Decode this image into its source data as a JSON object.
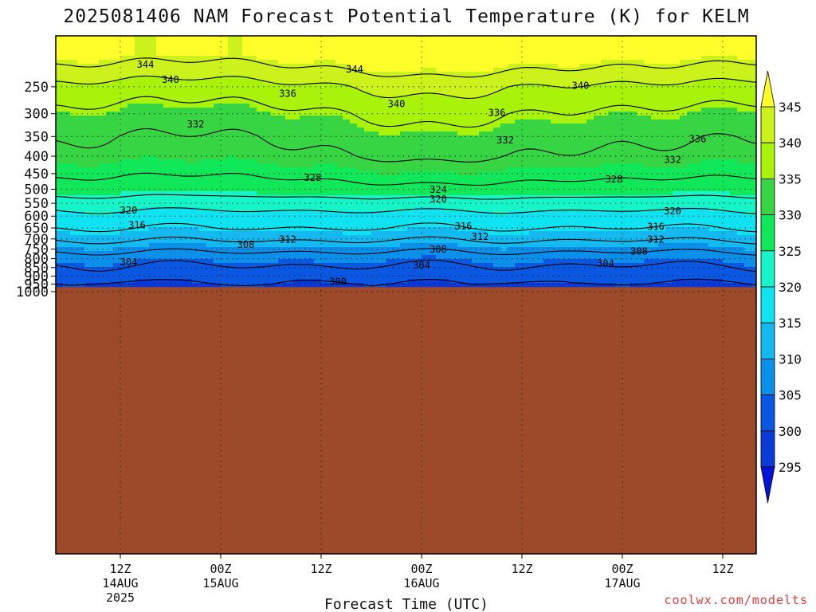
{
  "chart_data": {
    "type": "heatmap",
    "title": "2025081406 NAM Forecast Potential Temperature (K) for KELM",
    "xlabel": "Forecast Time (UTC)",
    "ylabel": "",
    "credit": "coolwx.com/modelts",
    "y_scale": "log-pressure",
    "y_reversed": true,
    "ylim": [
      1000,
      200
    ],
    "y_ticks": [
      "250",
      "300",
      "350",
      "400",
      "450",
      "500",
      "550",
      "600",
      "650",
      "700",
      "750",
      "800",
      "850",
      "900",
      "950",
      "1000"
    ],
    "x_ticks": [
      {
        "hour": 6,
        "label": "12Z",
        "sub": "14AUG",
        "sub2": "2025"
      },
      {
        "hour": 18,
        "label": "00Z",
        "sub": "15AUG",
        "sub2": ""
      },
      {
        "hour": 30,
        "label": "12Z",
        "sub": "",
        "sub2": ""
      },
      {
        "hour": 42,
        "label": "00Z",
        "sub": "16AUG",
        "sub2": ""
      },
      {
        "hour": 54,
        "label": "12Z",
        "sub": "",
        "sub2": ""
      },
      {
        "hour": 66,
        "label": "00Z",
        "sub": "17AUG",
        "sub2": ""
      },
      {
        "hour": 78,
        "label": "12Z",
        "sub": "",
        "sub2": ""
      }
    ],
    "x_range_hours": [
      0,
      84
    ],
    "grid": true,
    "colorbar": {
      "labels": [
        "345",
        "340",
        "335",
        "330",
        "325",
        "320",
        "315",
        "310",
        "305",
        "300",
        "295"
      ],
      "colors": [
        "#fffe2a",
        "#ccf21c",
        "#a9f20a",
        "#37d444",
        "#10e85a",
        "#15f5c8",
        "#0fe3f2",
        "#14baef",
        "#0a8fea",
        "#0a58e2",
        "#0a3ad8",
        "#0612d6"
      ]
    },
    "ground": {
      "color": "#9d4a2b",
      "pressure": 970
    },
    "contour_levels": [
      300,
      304,
      308,
      312,
      316,
      320,
      324,
      328,
      332,
      336,
      340,
      344
    ],
    "contour_labels": [
      {
        "text": "344",
        "hour": 9,
        "pressure": 215
      },
      {
        "text": "344",
        "hour": 34,
        "pressure": 222
      },
      {
        "text": "340",
        "hour": 12,
        "pressure": 238
      },
      {
        "text": "340",
        "hour": 61,
        "pressure": 248
      },
      {
        "text": "340",
        "hour": 39,
        "pressure": 281
      },
      {
        "text": "336",
        "hour": 26,
        "pressure": 262
      },
      {
        "text": "336",
        "hour": 51,
        "pressure": 298
      },
      {
        "text": "336",
        "hour": 75,
        "pressure": 356
      },
      {
        "text": "332",
        "hour": 15,
        "pressure": 322
      },
      {
        "text": "332",
        "hour": 52,
        "pressure": 359
      },
      {
        "text": "332",
        "hour": 72,
        "pressure": 410
      },
      {
        "text": "328",
        "hour": 29,
        "pressure": 462
      },
      {
        "text": "328",
        "hour": 65,
        "pressure": 467
      },
      {
        "text": "324",
        "hour": 44,
        "pressure": 501
      },
      {
        "text": "320",
        "hour": 7,
        "pressure": 577
      },
      {
        "text": "320",
        "hour": 44,
        "pressure": 535
      },
      {
        "text": "320",
        "hour": 72,
        "pressure": 580
      },
      {
        "text": "316",
        "hour": 8,
        "pressure": 637
      },
      {
        "text": "316",
        "hour": 47,
        "pressure": 642
      },
      {
        "text": "316",
        "hour": 70,
        "pressure": 645
      },
      {
        "text": "312",
        "hour": 26,
        "pressure": 702
      },
      {
        "text": "312",
        "hour": 49,
        "pressure": 690
      },
      {
        "text": "312",
        "hour": 70,
        "pressure": 702
      },
      {
        "text": "308",
        "hour": 21,
        "pressure": 728
      },
      {
        "text": "308",
        "hour": 44,
        "pressure": 752
      },
      {
        "text": "308",
        "hour": 68,
        "pressure": 762
      },
      {
        "text": "304",
        "hour": 7,
        "pressure": 820
      },
      {
        "text": "304",
        "hour": 42,
        "pressure": 837
      },
      {
        "text": "304",
        "hour": 64,
        "pressure": 827
      },
      {
        "text": "300",
        "hour": 32,
        "pressure": 935
      }
    ]
  }
}
